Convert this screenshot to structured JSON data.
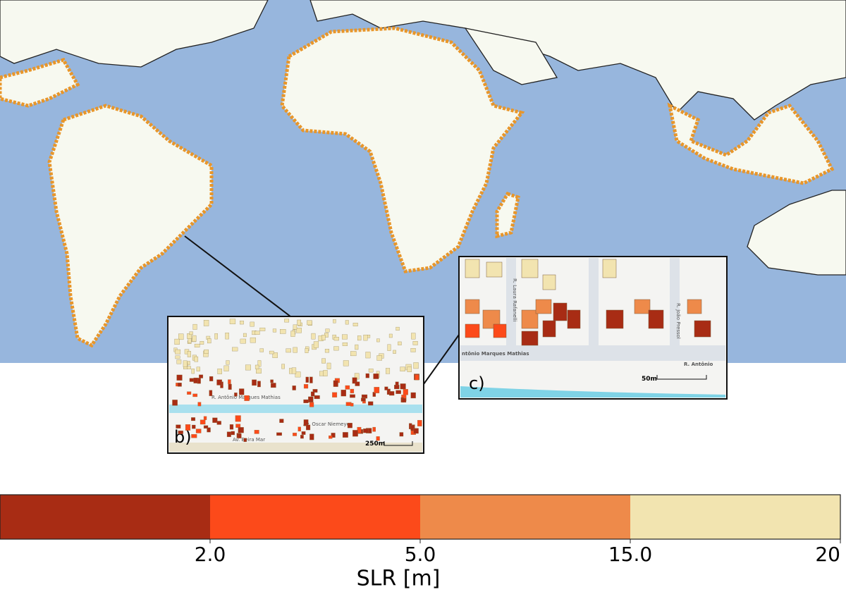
{
  "colorbar": {
    "label": "SLR [m]",
    "colors": [
      "#a82c14",
      "#fc4a1a",
      "#ee8a4a",
      "#f2e4b0"
    ],
    "ticks": [
      {
        "value": 2,
        "label": "2.0"
      },
      {
        "value": 5,
        "label": "5.0"
      },
      {
        "value": 15,
        "label": "15.0"
      },
      20
    ]
  },
  "insets": [
    {
      "label": "b)",
      "scale": "250m",
      "streets": [
        "R. Antônio Marques Mathias",
        "Av. Oscar Niemeyer",
        "Av. Beira Mar"
      ]
    },
    {
      "label": "c)",
      "scale": "50m",
      "streets": [
        "R. Laura Rafanelli",
        "R. João Pressol",
        "ntônio Marques Mathias",
        "R. Antônio"
      ]
    }
  ]
}
